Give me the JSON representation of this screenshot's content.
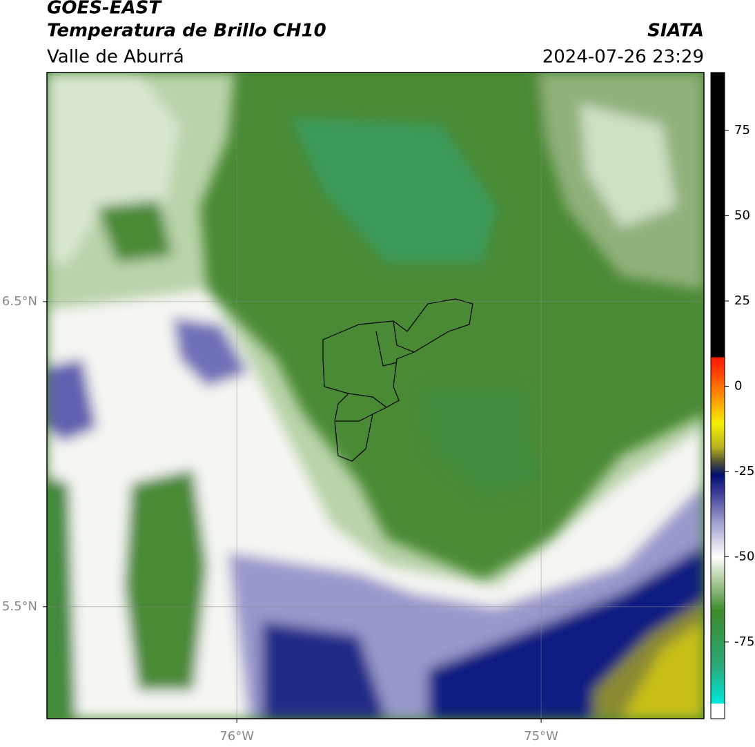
{
  "header": {
    "line1": "GOES-EAST",
    "line2": "Temperatura de Brillo CH10",
    "line3": "Valle de Aburrá",
    "source": "SIATA",
    "datetime": "2024-07-26 23:29"
  },
  "map": {
    "xlim": [
      -76.624,
      -74.465
    ],
    "ylim": [
      5.133,
      7.251
    ],
    "xticks": [
      {
        "value": -76,
        "label": "76°W"
      },
      {
        "value": -75,
        "label": "75°W"
      }
    ],
    "yticks": [
      {
        "value": 6.5,
        "label": "6.5°N"
      },
      {
        "value": 5.5,
        "label": "5.5°N"
      }
    ],
    "grid": true
  },
  "colorbar": {
    "lim": [
      -97.5,
      92
    ],
    "ticks": [
      75,
      50,
      25,
      0,
      -25,
      -50,
      -75
    ],
    "stops": [
      {
        "value": -97.5,
        "color": "#ffffff"
      },
      {
        "value": -93,
        "color": "#ffffff"
      },
      {
        "value": -93,
        "color": "#00e8dc"
      },
      {
        "value": -82,
        "color": "#2aa878"
      },
      {
        "value": -66,
        "color": "#3d8a2a"
      },
      {
        "value": -56,
        "color": "#b9d3a9"
      },
      {
        "value": -50,
        "color": "#ffffff"
      },
      {
        "value": -40,
        "color": "#a0a0d0"
      },
      {
        "value": -30,
        "color": "#303090"
      },
      {
        "value": -26,
        "color": "#001070"
      },
      {
        "value": -22,
        "color": "#555530"
      },
      {
        "value": -18,
        "color": "#b5b020"
      },
      {
        "value": -11,
        "color": "#f5f000"
      },
      {
        "value": -3,
        "color": "#ff9000"
      },
      {
        "value": 7,
        "color": "#ff2000"
      },
      {
        "value": 8.5,
        "color": "#ff2000"
      },
      {
        "value": 8.5,
        "color": "#000000"
      },
      {
        "value": 92,
        "color": "#000000"
      }
    ]
  }
}
